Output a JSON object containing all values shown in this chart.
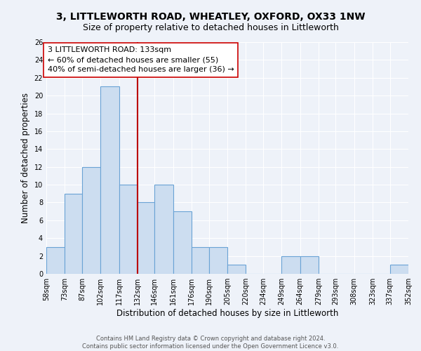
{
  "title": "3, LITTLEWORTH ROAD, WHEATLEY, OXFORD, OX33 1NW",
  "subtitle": "Size of property relative to detached houses in Littleworth",
  "xlabel": "Distribution of detached houses by size in Littleworth",
  "ylabel": "Number of detached properties",
  "bin_edges": [
    58,
    73,
    87,
    102,
    117,
    132,
    146,
    161,
    176,
    190,
    205,
    220,
    234,
    249,
    264,
    279,
    293,
    308,
    323,
    337,
    352
  ],
  "bin_labels": [
    "58sqm",
    "73sqm",
    "87sqm",
    "102sqm",
    "117sqm",
    "132sqm",
    "146sqm",
    "161sqm",
    "176sqm",
    "190sqm",
    "205sqm",
    "220sqm",
    "234sqm",
    "249sqm",
    "264sqm",
    "279sqm",
    "293sqm",
    "308sqm",
    "323sqm",
    "337sqm",
    "352sqm"
  ],
  "counts": [
    3,
    9,
    12,
    21,
    10,
    8,
    10,
    7,
    3,
    3,
    1,
    0,
    0,
    2,
    2,
    0,
    0,
    0,
    0,
    1
  ],
  "bar_facecolor": "#ccddf0",
  "bar_edgecolor": "#6aa3d5",
  "vline_x": 132,
  "vline_color": "#bb0000",
  "annotation_text_lines": [
    "3 LITTLEWORTH ROAD: 133sqm",
    "← 60% of detached houses are smaller (55)",
    "40% of semi-detached houses are larger (36) →"
  ],
  "annotation_box_edgecolor": "#cc0000",
  "annotation_box_facecolor": "#ffffff",
  "ylim": [
    0,
    26
  ],
  "yticks": [
    0,
    2,
    4,
    6,
    8,
    10,
    12,
    14,
    16,
    18,
    20,
    22,
    24,
    26
  ],
  "footer_text": "Contains HM Land Registry data © Crown copyright and database right 2024.\nContains public sector information licensed under the Open Government Licence v3.0.",
  "bg_color": "#eef2f9",
  "grid_color": "#ffffff",
  "title_fontsize": 10,
  "subtitle_fontsize": 9,
  "axis_label_fontsize": 8.5,
  "tick_fontsize": 7,
  "annotation_fontsize": 8,
  "footer_fontsize": 6
}
